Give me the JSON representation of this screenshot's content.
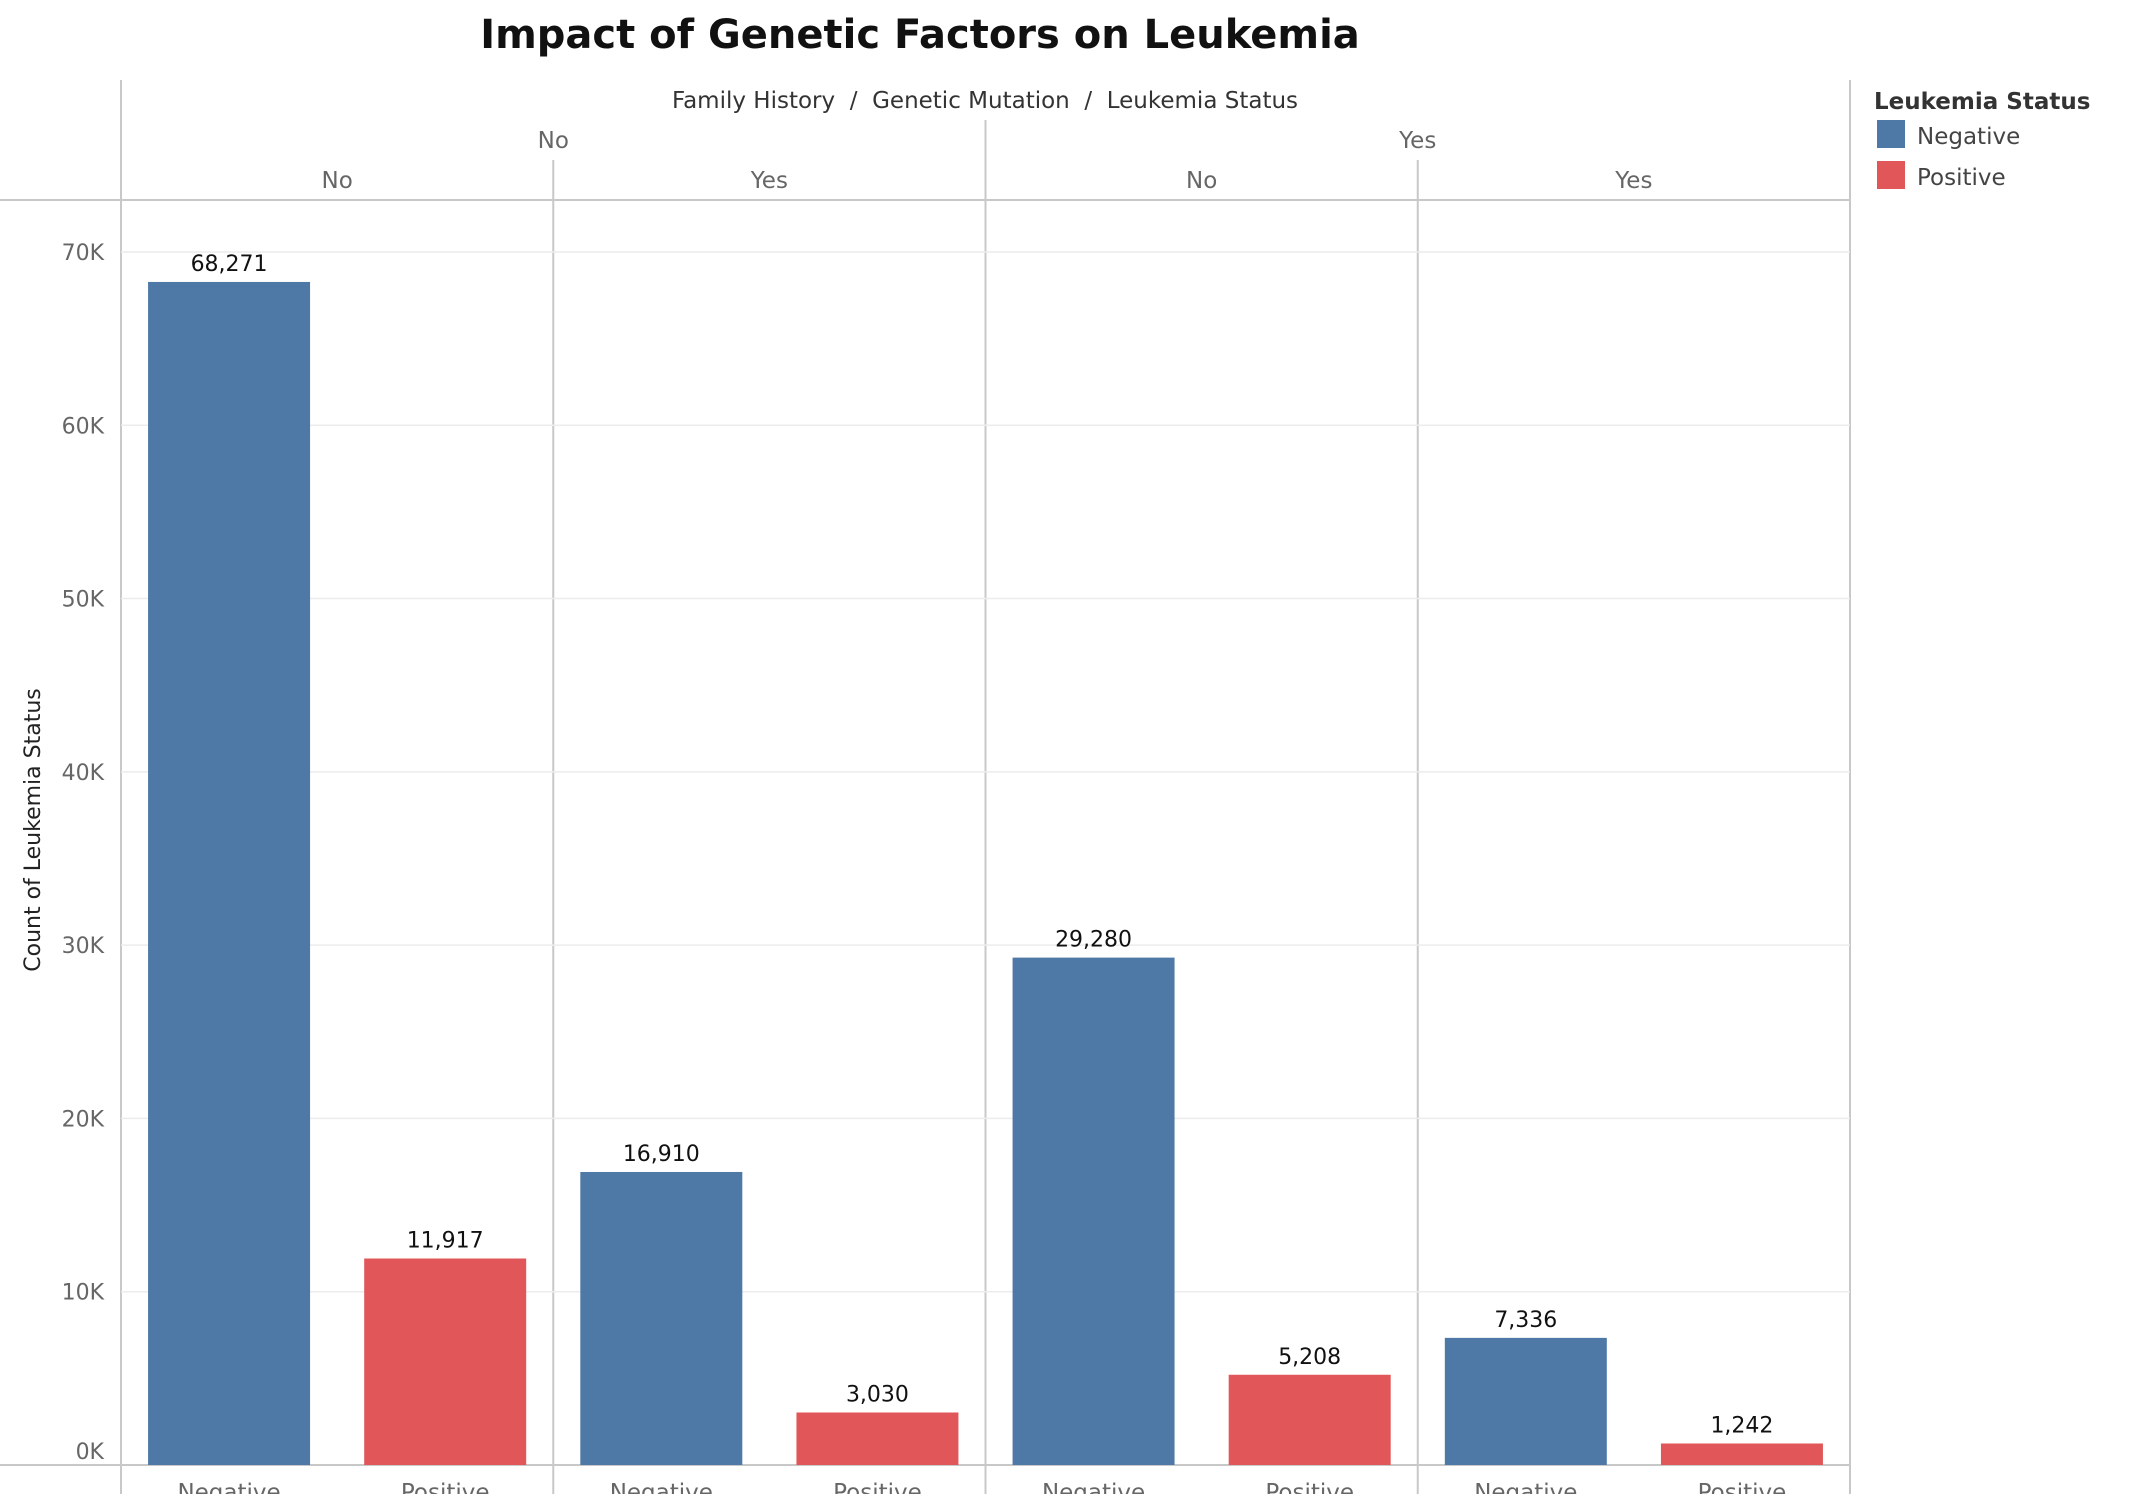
{
  "chart_data": {
    "type": "bar",
    "title": "Impact of Genetic Factors on Leukemia",
    "column_header": "Family History  /  Genetic Mutation  /  Leukemia Status",
    "ylabel": "Count of Leukemia Status",
    "ylim": [
      0,
      73000
    ],
    "yticks": [
      {
        "value": 0,
        "label": "0K"
      },
      {
        "value": 10000,
        "label": "10K"
      },
      {
        "value": 20000,
        "label": "20K"
      },
      {
        "value": 30000,
        "label": "30K"
      },
      {
        "value": 40000,
        "label": "40K"
      },
      {
        "value": 50000,
        "label": "50K"
      },
      {
        "value": 60000,
        "label": "60K"
      },
      {
        "value": 70000,
        "label": "70K"
      }
    ],
    "grid": true,
    "legend": {
      "title": "Leukemia Status",
      "position": "right",
      "items": [
        {
          "label": "Negative",
          "color": "#4e79a7"
        },
        {
          "label": "Positive",
          "color": "#e15759"
        }
      ]
    },
    "family_history": [
      "No",
      "Yes"
    ],
    "genetic_mutation": [
      "No",
      "Yes"
    ],
    "bars": [
      {
        "family_history": "No",
        "genetic_mutation": "No",
        "status": "Negative",
        "value": 68271,
        "label": "68,271"
      },
      {
        "family_history": "No",
        "genetic_mutation": "No",
        "status": "Positive",
        "value": 11917,
        "label": "11,917"
      },
      {
        "family_history": "No",
        "genetic_mutation": "Yes",
        "status": "Negative",
        "value": 16910,
        "label": "16,910"
      },
      {
        "family_history": "No",
        "genetic_mutation": "Yes",
        "status": "Positive",
        "value": 3030,
        "label": "3,030"
      },
      {
        "family_history": "Yes",
        "genetic_mutation": "No",
        "status": "Negative",
        "value": 29280,
        "label": "29,280"
      },
      {
        "family_history": "Yes",
        "genetic_mutation": "No",
        "status": "Positive",
        "value": 5208,
        "label": "5,208"
      },
      {
        "family_history": "Yes",
        "genetic_mutation": "Yes",
        "status": "Negative",
        "value": 7336,
        "label": "7,336"
      },
      {
        "family_history": "Yes",
        "genetic_mutation": "Yes",
        "status": "Positive",
        "value": 1242,
        "label": "1,242"
      }
    ],
    "colors": {
      "Negative": "#4e79a7",
      "Positive": "#e15759"
    }
  }
}
